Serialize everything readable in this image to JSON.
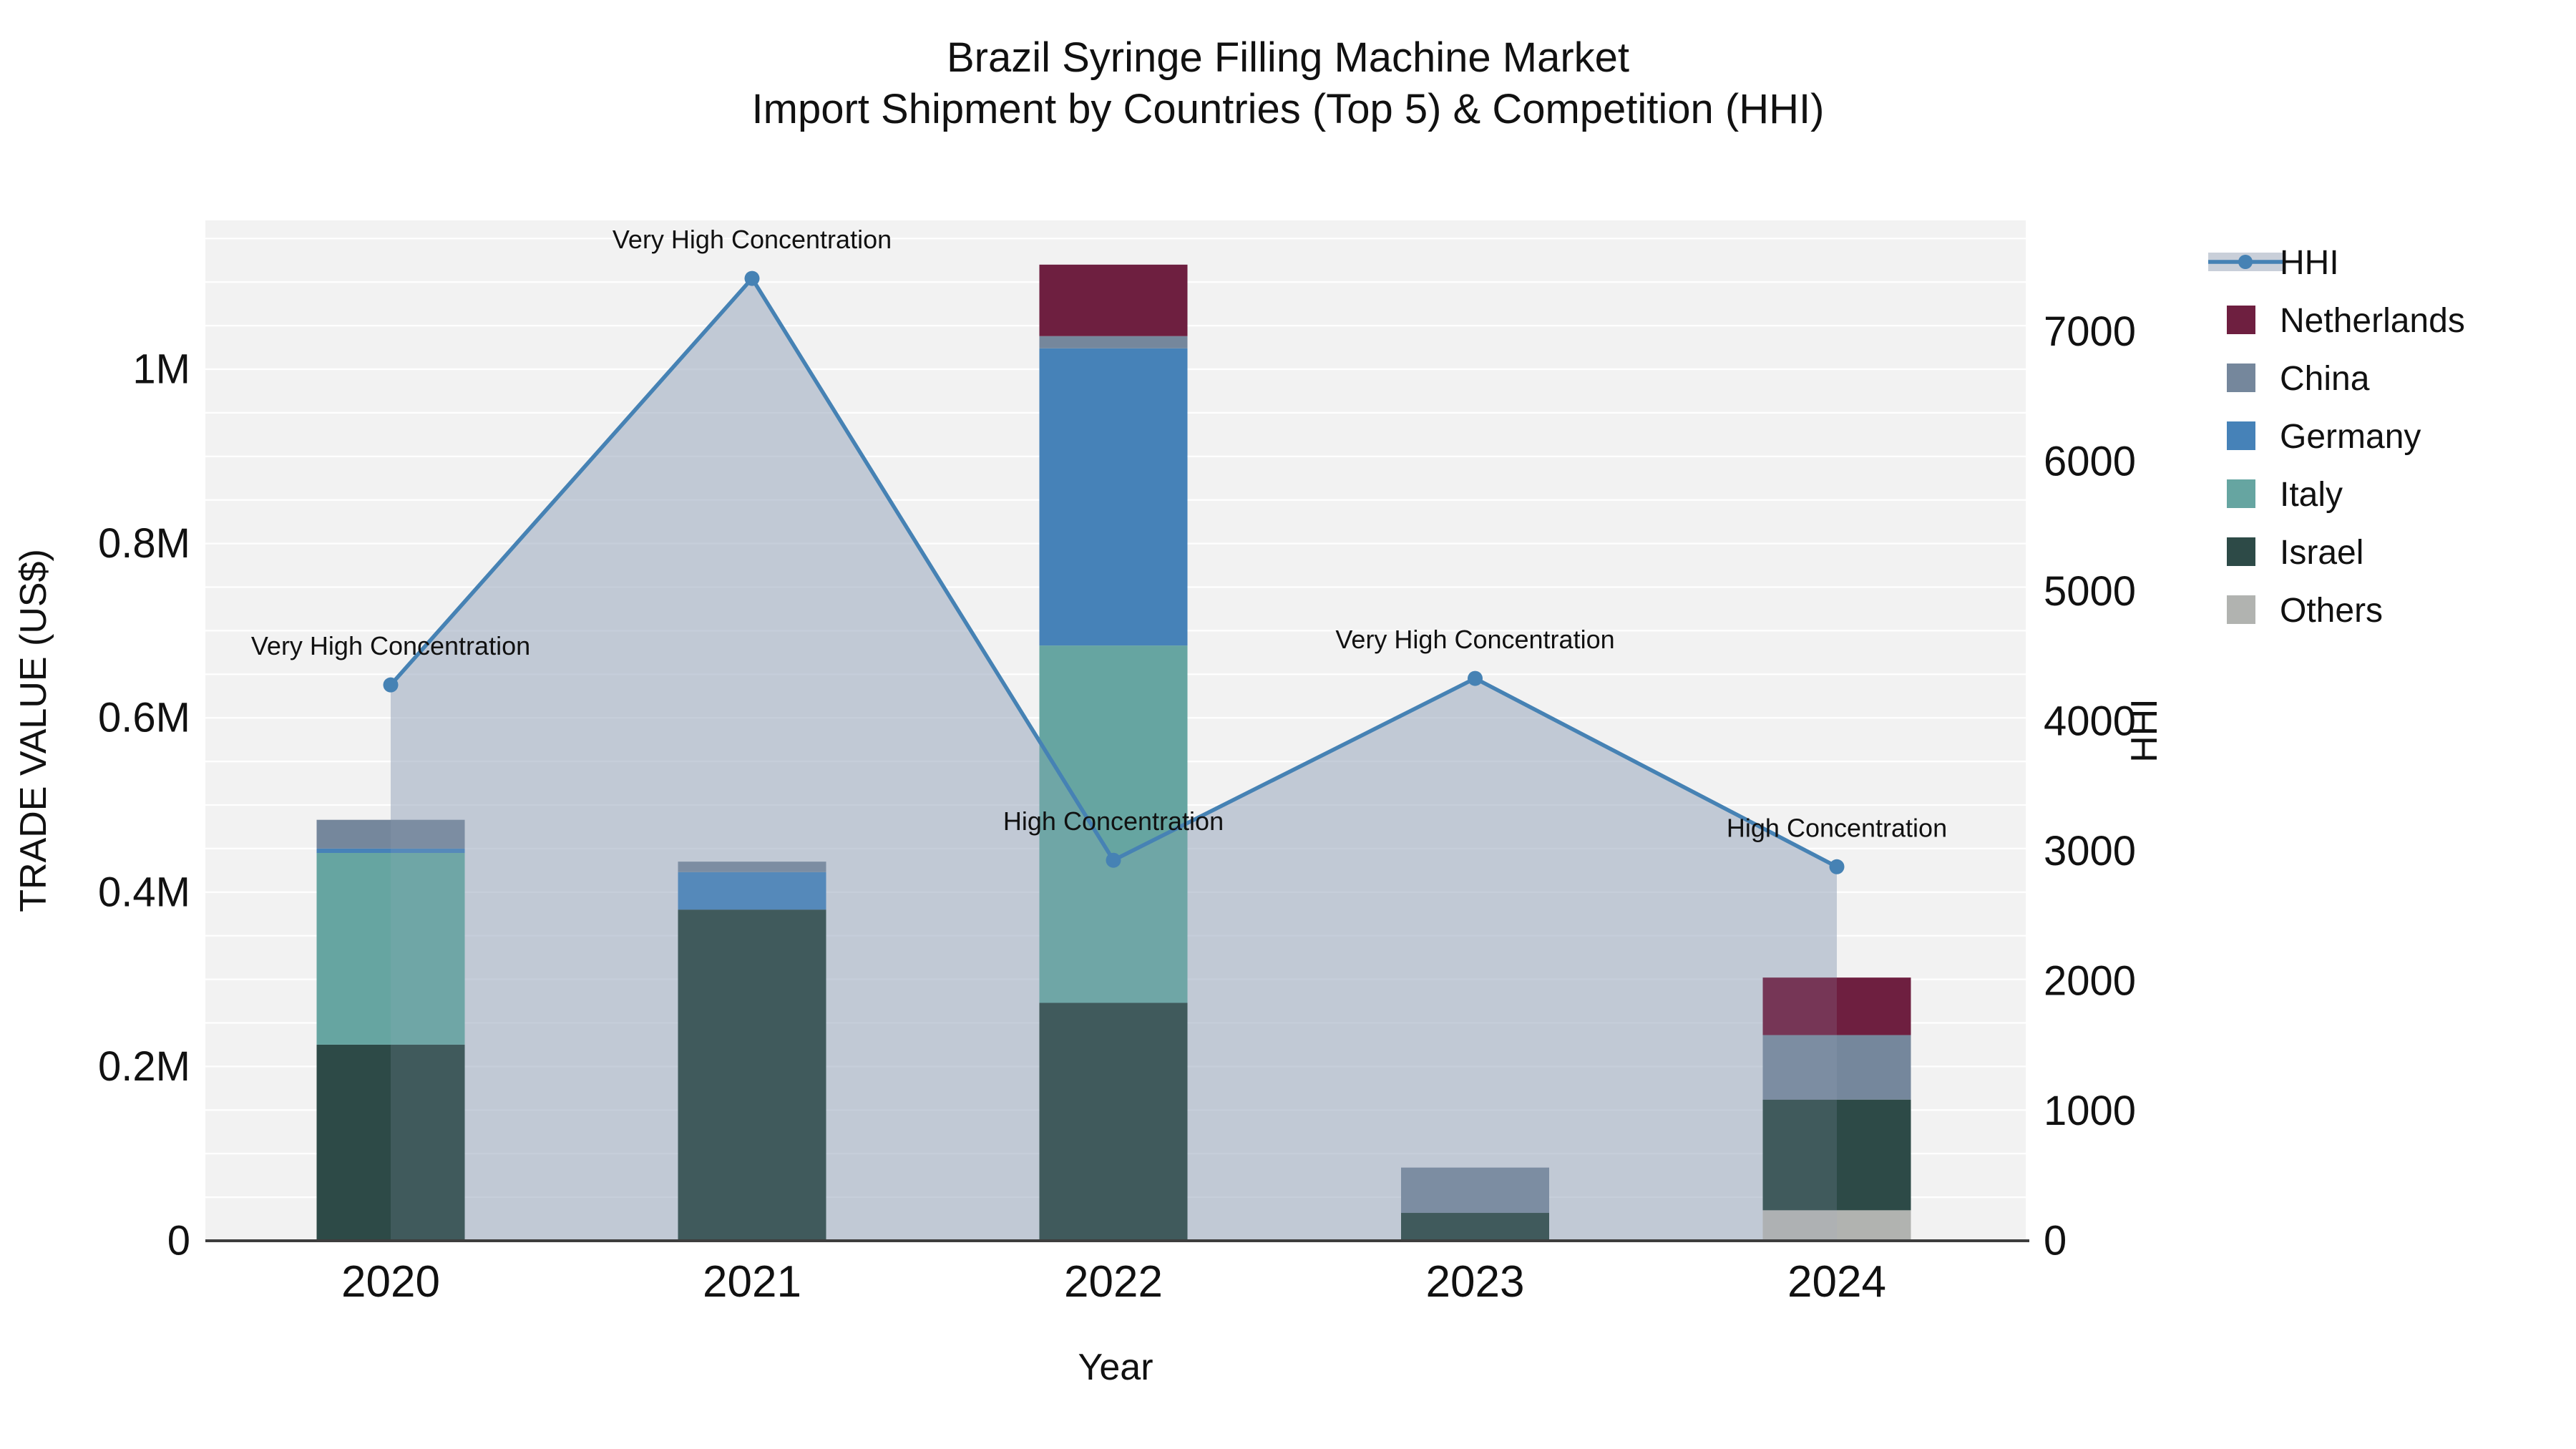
{
  "figure": {
    "title_line1": "Brazil Syringe Filling Machine Market",
    "title_line2": "Import Shipment by Countries (Top 5) & Competition (HHI)"
  },
  "chart_data": {
    "type": "combo: stacked-bar (left axis) + line-area (right axis)",
    "title": "Brazil Syringe Filling Machine Market Import Shipment by Countries (Top 5) & Competition (HHI)",
    "xlabel": "Year",
    "ylabel_left": "TRADE VALUE (US$)",
    "ylabel_right": "HHI",
    "categories": [
      "2020",
      "2021",
      "2022",
      "2023",
      "2024"
    ],
    "bar_series_bottom_to_top": [
      {
        "name": "Others",
        "color": "#b1b3b0",
        "values_usd": [
          0,
          0,
          0,
          0,
          35000
        ]
      },
      {
        "name": "Israel",
        "color": "#2d4a47",
        "values_usd": [
          225000,
          380000,
          273000,
          32000,
          127000
        ]
      },
      {
        "name": "Italy",
        "color": "#66a5a1",
        "values_usd": [
          220000,
          0,
          410000,
          0,
          0
        ]
      },
      {
        "name": "Germany",
        "color": "#4682b8",
        "values_usd": [
          5000,
          43000,
          341000,
          0,
          0
        ]
      },
      {
        "name": "China",
        "color": "#75879c",
        "values_usd": [
          33000,
          12000,
          14000,
          52000,
          74000
        ]
      },
      {
        "name": "Netherlands",
        "color": "#6e1f40",
        "values_usd": [
          0,
          0,
          82000,
          0,
          66000
        ]
      }
    ],
    "bar_totals_usd": [
      483000,
      435000,
      1120000,
      84000,
      302000
    ],
    "hhi_series": {
      "name": "HHI",
      "line_color": "#4682b4",
      "area_fill_color": "#a2aec2",
      "values": [
        4280,
        7410,
        2930,
        4330,
        2880
      ],
      "annotations": [
        "Very High Concentration",
        "Very High Concentration",
        "High Concentration",
        "Very High Concentration",
        "High Concentration"
      ]
    },
    "y_left_axis": {
      "ticks": [
        0,
        200000,
        400000,
        600000,
        800000,
        1000000
      ],
      "tick_labels": [
        "0",
        "0.2M",
        "0.4M",
        "0.6M",
        "0.8M",
        "1M"
      ],
      "max": 1170000
    },
    "y_right_axis": {
      "ticks": [
        0,
        1000,
        2000,
        3000,
        4000,
        5000,
        6000,
        7000
      ],
      "tick_labels": [
        "0",
        "1000",
        "2000",
        "3000",
        "4000",
        "5000",
        "6000",
        "7000"
      ],
      "max": 7856
    },
    "legend_top_to_bottom": [
      {
        "label": "HHI",
        "type": "line-marker-area",
        "color": "#4682b4"
      },
      {
        "label": "Netherlands",
        "type": "swatch",
        "color": "#6e1f40"
      },
      {
        "label": "China",
        "type": "swatch",
        "color": "#75879c"
      },
      {
        "label": "Germany",
        "type": "swatch",
        "color": "#4682b8"
      },
      {
        "label": "Italy",
        "type": "swatch",
        "color": "#66a5a1"
      },
      {
        "label": "Israel",
        "type": "swatch",
        "color": "#2d4a47"
      },
      {
        "label": "Others",
        "type": "swatch",
        "color": "#b1b3b0"
      }
    ],
    "layout_hints": {
      "plot_background": "#f2f2f2",
      "grid_color": "#ffffff",
      "grid_step_left_usd": 50000,
      "axis_line_color": "#3d3d3d",
      "legend_position": "outside-right-top",
      "area_spans": "from 2020 point to 2024 point, filled to zero"
    }
  }
}
